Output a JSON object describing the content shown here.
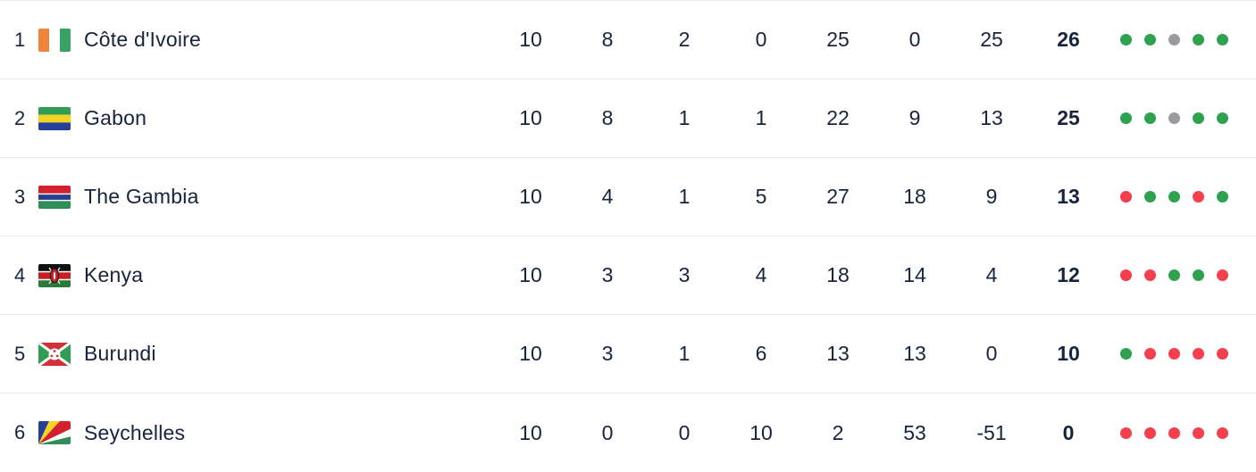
{
  "table": {
    "rows": [
      {
        "pos": "1",
        "team": "Côte d'Ivoire",
        "flag_icon": "flag-cote-divoire",
        "played": "10",
        "won": "8",
        "drawn": "2",
        "lost": "0",
        "goals_for": "25",
        "goals_against": "0",
        "goal_diff": "25",
        "points": "26",
        "form": [
          "win",
          "win",
          "draw",
          "win",
          "win"
        ]
      },
      {
        "pos": "2",
        "team": "Gabon",
        "flag_icon": "flag-gabon",
        "played": "10",
        "won": "8",
        "drawn": "1",
        "lost": "1",
        "goals_for": "22",
        "goals_against": "9",
        "goal_diff": "13",
        "points": "25",
        "form": [
          "win",
          "win",
          "draw",
          "win",
          "win"
        ]
      },
      {
        "pos": "3",
        "team": "The Gambia",
        "flag_icon": "flag-gambia",
        "played": "10",
        "won": "4",
        "drawn": "1",
        "lost": "5",
        "goals_for": "27",
        "goals_against": "18",
        "goal_diff": "9",
        "points": "13",
        "form": [
          "loss",
          "win",
          "win",
          "loss",
          "win"
        ]
      },
      {
        "pos": "4",
        "team": "Kenya",
        "flag_icon": "flag-kenya",
        "played": "10",
        "won": "3",
        "drawn": "3",
        "lost": "4",
        "goals_for": "18",
        "goals_against": "14",
        "goal_diff": "4",
        "points": "12",
        "form": [
          "loss",
          "loss",
          "win",
          "win",
          "loss"
        ]
      },
      {
        "pos": "5",
        "team": "Burundi",
        "flag_icon": "flag-burundi",
        "played": "10",
        "won": "3",
        "drawn": "1",
        "lost": "6",
        "goals_for": "13",
        "goals_against": "13",
        "goal_diff": "0",
        "points": "10",
        "form": [
          "win",
          "loss",
          "loss",
          "loss",
          "loss"
        ]
      },
      {
        "pos": "6",
        "team": "Seychelles",
        "flag_icon": "flag-seychelles",
        "played": "10",
        "won": "0",
        "drawn": "0",
        "lost": "10",
        "goals_for": "2",
        "goals_against": "53",
        "goal_diff": "-51",
        "points": "0",
        "form": [
          "loss",
          "loss",
          "loss",
          "loss",
          "loss"
        ]
      }
    ]
  },
  "colors": {
    "win": "#2fa24f",
    "draw": "#9b9b9f",
    "loss": "#f43f4f",
    "text": "#16243d",
    "separator": "#e9e9ed"
  }
}
